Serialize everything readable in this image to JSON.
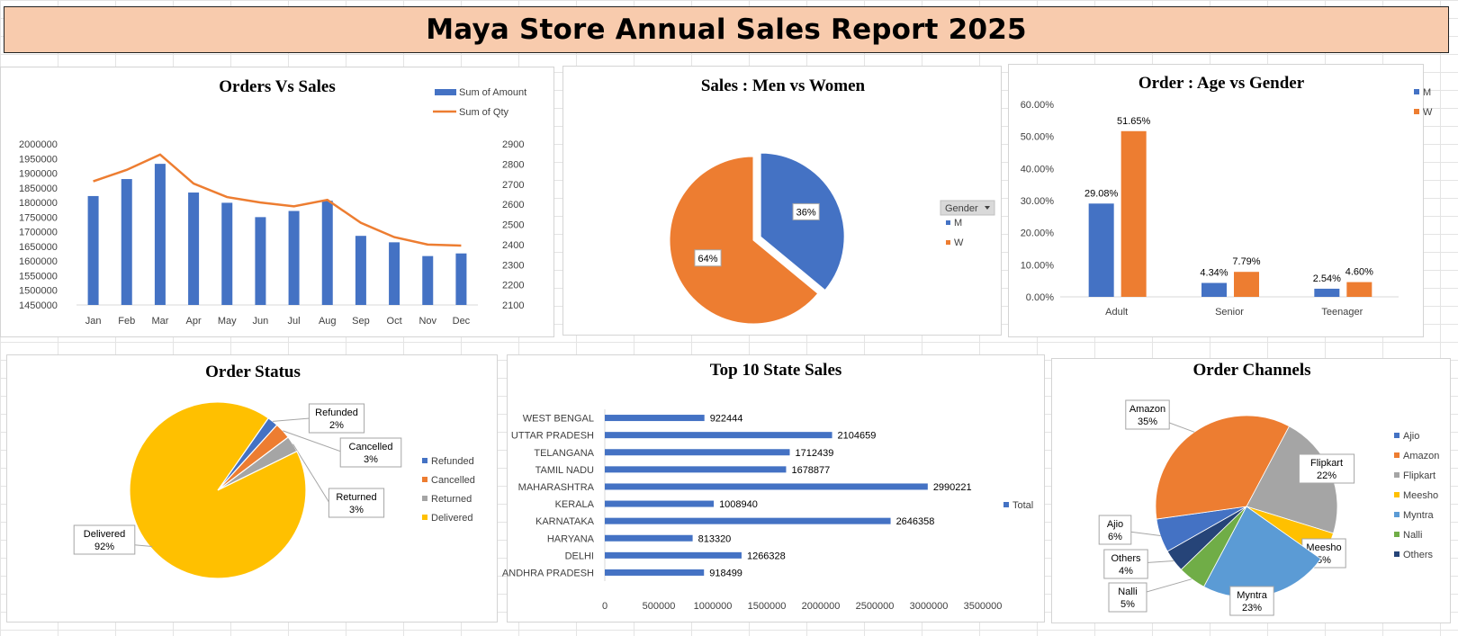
{
  "report_title": "Maya Store Annual Sales Report 2025",
  "colors": {
    "blue": "#4472c4",
    "orange": "#ed7d31",
    "gray": "#a5a5a5",
    "yellow": "#ffc000",
    "lightblue": "#5b9bd5",
    "green": "#70ad47",
    "navy": "#264478",
    "banner": "#f8cbad"
  },
  "chart_data": [
    {
      "id": "orders_vs_sales",
      "type": "bar",
      "title": "Orders Vs Sales",
      "categories": [
        "Jan",
        "Feb",
        "Mar",
        "Apr",
        "May",
        "Jun",
        "Jul",
        "Aug",
        "Sep",
        "Oct",
        "Nov",
        "Dec"
      ],
      "series": [
        {
          "name": "Sum of Amount",
          "type": "bar",
          "axis": "left",
          "values": [
            1822000,
            1880000,
            1932000,
            1834000,
            1799000,
            1750000,
            1771000,
            1806000,
            1686000,
            1664000,
            1617000,
            1626000
          ]
        },
        {
          "name": "Sum of Qty",
          "type": "line",
          "axis": "right",
          "values": [
            2714,
            2771,
            2847,
            2703,
            2636,
            2609,
            2590,
            2622,
            2508,
            2437,
            2400,
            2395
          ]
        }
      ],
      "y_left": {
        "min": 1450000,
        "max": 2000000,
        "ticks": [
          "2000000",
          "1950000",
          "1900000",
          "1850000",
          "1800000",
          "1750000",
          "1700000",
          "1650000",
          "1600000",
          "1550000",
          "1500000",
          "1450000"
        ]
      },
      "y_right": {
        "min": 2100,
        "max": 2900,
        "ticks": [
          "2900",
          "2800",
          "2700",
          "2600",
          "2500",
          "2400",
          "2300",
          "2200",
          "2100"
        ]
      },
      "legend_position": "top-right"
    },
    {
      "id": "men_vs_women",
      "type": "pie",
      "title": "Sales : Men vs Women",
      "legend_title": "Gender",
      "slices": [
        {
          "label": "M",
          "value": 36,
          "data_label": "36%"
        },
        {
          "label": "W",
          "value": 64,
          "data_label": "64%"
        }
      ],
      "legend_position": "right"
    },
    {
      "id": "age_vs_gender",
      "type": "bar",
      "title": "Order : Age vs Gender",
      "categories": [
        "Adult",
        "Senior",
        "Teenager"
      ],
      "series": [
        {
          "name": "M",
          "values": [
            29.08,
            4.34,
            2.54
          ],
          "labels": [
            "29.08%",
            "4.34%",
            "2.54%"
          ]
        },
        {
          "name": "W",
          "values": [
            51.65,
            7.79,
            4.6
          ],
          "labels": [
            "51.65%",
            "7.79%",
            "4.60%"
          ]
        }
      ],
      "ylim": [
        0,
        60
      ],
      "y_ticks": [
        "60.00%",
        "50.00%",
        "40.00%",
        "30.00%",
        "20.00%",
        "10.00%",
        "0.00%"
      ],
      "legend_position": "top-right"
    },
    {
      "id": "order_status",
      "type": "pie",
      "title": "Order Status",
      "slices": [
        {
          "label": "Refunded",
          "value": 2,
          "data_label": "2%"
        },
        {
          "label": "Cancelled",
          "value": 3,
          "data_label": "3%"
        },
        {
          "label": "Returned",
          "value": 3,
          "data_label": "3%"
        },
        {
          "label": "Delivered",
          "value": 92,
          "data_label": "92%"
        }
      ],
      "legend_position": "right"
    },
    {
      "id": "top_state_sales",
      "type": "bar",
      "orientation": "horizontal",
      "title": "Top 10 State Sales",
      "categories": [
        "WEST BENGAL",
        "UTTAR PRADESH",
        "TELANGANA",
        "TAMIL NADU",
        "MAHARASHTRA",
        "KERALA",
        "KARNATAKA",
        "HARYANA",
        "DELHI",
        "ANDHRA PRADESH"
      ],
      "series": [
        {
          "name": "Total",
          "values": [
            922444,
            2104659,
            1712439,
            1678877,
            2990221,
            1008940,
            2646358,
            813320,
            1266328,
            918499
          ],
          "labels": [
            "922444",
            "2104659",
            "1712439",
            "1678877",
            "2990221",
            "1008940",
            "2646358",
            "813320",
            "1266328",
            "918499"
          ]
        }
      ],
      "xlim": [
        0,
        3500000
      ],
      "x_ticks": [
        "0",
        "500000",
        "1000000",
        "1500000",
        "2000000",
        "2500000",
        "3000000",
        "3500000"
      ],
      "legend_position": "right"
    },
    {
      "id": "order_channels",
      "type": "pie",
      "title": "Order Channels",
      "slices": [
        {
          "label": "Ajio",
          "value": 6,
          "data_label": "6%"
        },
        {
          "label": "Amazon",
          "value": 35,
          "data_label": "35%"
        },
        {
          "label": "Flipkart",
          "value": 22,
          "data_label": "22%"
        },
        {
          "label": "Meesho",
          "value": 5,
          "data_label": "5%"
        },
        {
          "label": "Myntra",
          "value": 23,
          "data_label": "23%"
        },
        {
          "label": "Nalli",
          "value": 5,
          "data_label": "5%"
        },
        {
          "label": "Others",
          "value": 4,
          "data_label": "4%"
        }
      ],
      "legend_position": "right"
    }
  ]
}
